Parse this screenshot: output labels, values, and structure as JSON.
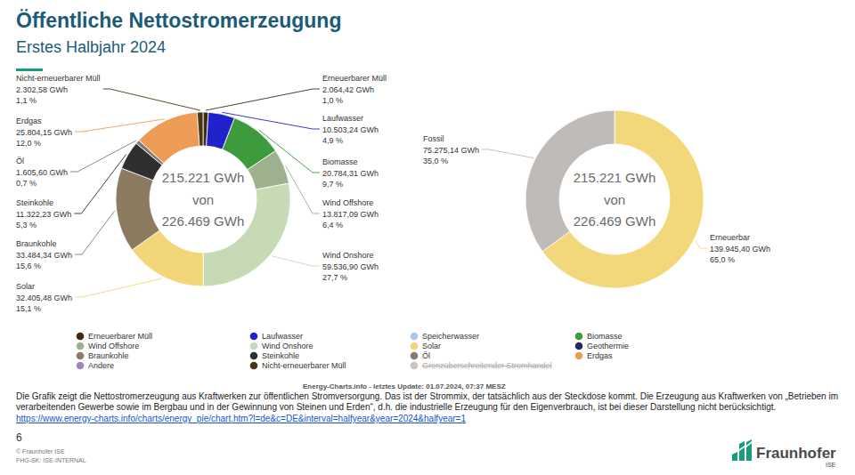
{
  "slide": {
    "title": "Öffentliche Nettostromerzeugung",
    "subtitle": "Erstes Halbjahr 2024",
    "source": "Energy-Charts.info - letztes Update: 01.07.2024, 07:37 MESZ",
    "description": "Die Grafik zeigt die Nettostromerzeugung aus Kraftwerken zur öffentlichen Stromversorgung. Das ist der Strommix, der tatsächlich aus der Steckdose kommt. Die Erzeugung aus Kraftwerken von „Betrieben im verarbeitenden Gewerbe sowie im Bergbau und in der Gewinnung von Steinen und Erden“, d.h. die industrielle Erzeugung für den Eigenverbrauch, ist bei dieser Darstellung nicht berücksichtigt.",
    "link": "https://www.energy-charts.info/charts/energy_pie/chart.htm?l=de&c=DE&interval=halfyear&year=2024&halfyear=1",
    "page_number": "6",
    "copyright": "© Fraunhofer ISE",
    "classification": "FHG-SK: ISE-INTERNAL",
    "logo": {
      "name": "Fraunhofer",
      "unit": "ISE"
    }
  },
  "chart_data": [
    {
      "type": "donut",
      "categories": [
        "Erneuerbarer Müll",
        "Laufwasser",
        "Biomasse",
        "Wind Offshore",
        "Wind Onshore",
        "Solar",
        "Braunkohle",
        "Steinkohle",
        "Öl",
        "Erdgas",
        "Nicht-erneuerbarer Müll"
      ],
      "values": [
        2064.42,
        10503.24,
        20784.31,
        13817.09,
        59536.9,
        32405.48,
        33484.34,
        11322.23,
        1605.6,
        25804.15,
        2302.58
      ],
      "value_labels": [
        "2.064,42 GWh",
        "10.503,24 GWh",
        "20.784,31 GWh",
        "13.817,09 GWh",
        "59.536,90 GWh",
        "32.405,48 GWh",
        "33.484,34 GWh",
        "11.322,23 GWh",
        "1.605,60 GWh",
        "25.804,15 GWh",
        "2.302,58 GWh"
      ],
      "shares": [
        1.0,
        4.9,
        9.7,
        6.4,
        27.7,
        15.1,
        15.6,
        5.3,
        0.7,
        12.0,
        1.1
      ],
      "share_labels": [
        "1,0 %",
        "4,9 %",
        "9,7 %",
        "6,4 %",
        "27,7 %",
        "15,1 %",
        "15,6 %",
        "5,3 %",
        "0,7 %",
        "12,0 %",
        "1,1 %"
      ],
      "colors": [
        "#3d2b14",
        "#2222cc",
        "#3d9a3d",
        "#9db18f",
        "#c6dbb5",
        "#f4d67a",
        "#8c7b61",
        "#2f2f2f",
        "#857a72",
        "#ec9c55",
        "#4b3612"
      ],
      "center_label": [
        "215.221 GWh",
        "von",
        "226.469 GWh"
      ],
      "data_labels": true,
      "legend": "bottom",
      "legend_entries": [
        {
          "name": "Erneuerbarer Müll",
          "color": "#3d2b14",
          "active": true
        },
        {
          "name": "Laufwasser",
          "color": "#2222cc",
          "active": true
        },
        {
          "name": "Speicherwasser",
          "color": "#a8c4ef",
          "active": true
        },
        {
          "name": "Biomasse",
          "color": "#3d9a3d",
          "active": true
        },
        {
          "name": "Wind Offshore",
          "color": "#9db18f",
          "active": true
        },
        {
          "name": "Wind Onshore",
          "color": "#c6dbb5",
          "active": true
        },
        {
          "name": "Solar",
          "color": "#f4d67a",
          "active": true
        },
        {
          "name": "Geothermie",
          "color": "#26266b",
          "active": true
        },
        {
          "name": "Braunkohle",
          "color": "#8c7b61",
          "active": true
        },
        {
          "name": "Steinkohle",
          "color": "#2f2f2f",
          "active": true
        },
        {
          "name": "Öl",
          "color": "#857a72",
          "active": true
        },
        {
          "name": "Erdgas",
          "color": "#ec9c55",
          "active": true
        },
        {
          "name": "Andere",
          "color": "#9b85c4",
          "active": true
        },
        {
          "name": "Nicht-erneuerbarer Müll",
          "color": "#4b3612",
          "active": true
        },
        {
          "name": "Grenzüberschreitender Stromhandel",
          "color": "#b0a39a",
          "active": false
        }
      ]
    },
    {
      "type": "donut",
      "categories": [
        "Erneuerbar",
        "Fossil"
      ],
      "values": [
        139945.4,
        75275.14
      ],
      "value_labels": [
        "139.945,40 GWh",
        "75.275,14 GWh"
      ],
      "shares": [
        65.0,
        35.0
      ],
      "share_labels": [
        "65,0 %",
        "35,0 %"
      ],
      "colors": [
        "#f3d77b",
        "#bfbbb8"
      ],
      "center_label": [
        "215.221 GWh",
        "von",
        "226.469 GWh"
      ],
      "data_labels": true
    }
  ]
}
